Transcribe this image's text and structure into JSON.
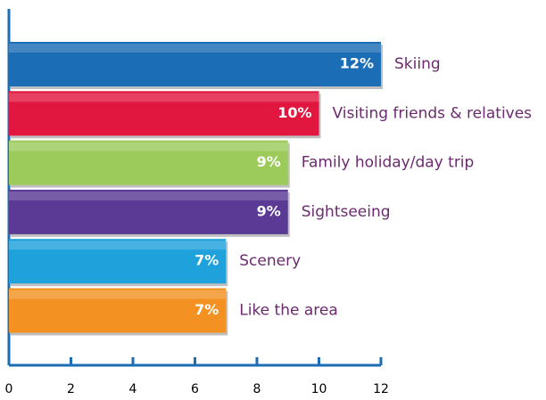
{
  "chart_data": {
    "type": "bar",
    "orientation": "horizontal",
    "categories": [
      "Skiing",
      "Visiting friends & relatives",
      "Family holiday/day trip",
      "Sightseeing",
      "Scenery",
      "Like the area"
    ],
    "values": [
      12,
      10,
      9,
      9,
      7,
      7
    ],
    "value_labels": [
      "12%",
      "10%",
      "9%",
      "9%",
      "7%",
      "7%"
    ],
    "colors": [
      "#1b6db5",
      "#e2173f",
      "#9ccb5b",
      "#5a3a95",
      "#1fa2dc",
      "#f39222"
    ],
    "xlim": [
      0,
      12
    ],
    "xticks": [
      0,
      2,
      4,
      6,
      8,
      10,
      12
    ],
    "axis_color": "#1b6db5",
    "label_color": "#6b2a6e"
  }
}
